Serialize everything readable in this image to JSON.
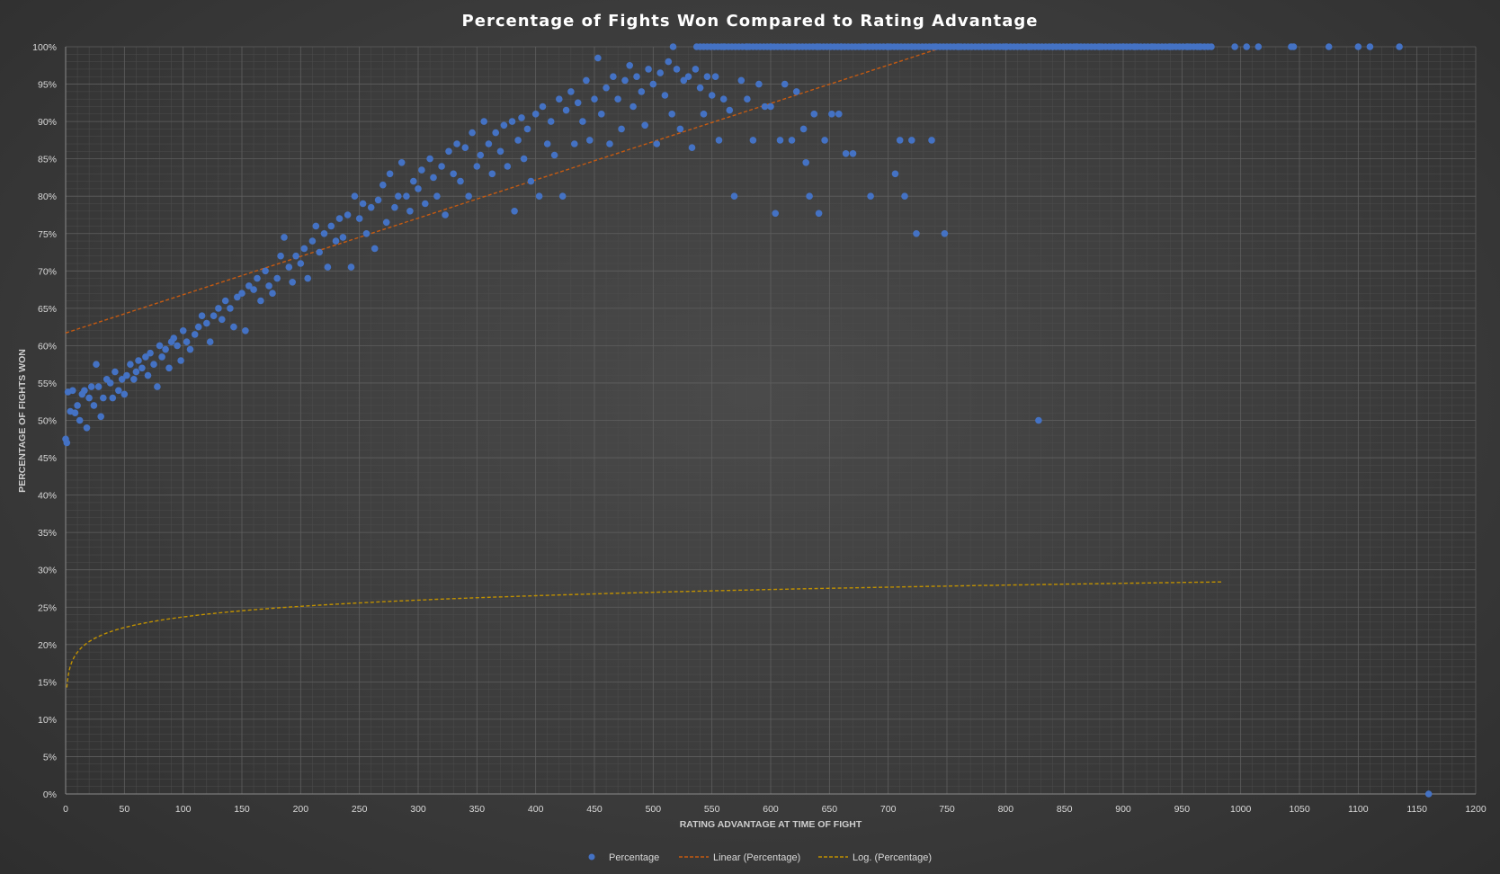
{
  "chart_data": {
    "type": "scatter",
    "title": "Percentage of Fights Won Compared to Rating Advantage",
    "xlabel": "RATING ADVANTAGE AT TIME OF FIGHT",
    "ylabel": "PERCENTAGE OF FIGHTS WON",
    "xlim": [
      0,
      1200
    ],
    "ylim": [
      0,
      1
    ],
    "xticks": [
      "0",
      "50",
      "100",
      "150",
      "200",
      "250",
      "300",
      "350",
      "400",
      "450",
      "500",
      "550",
      "600",
      "650",
      "700",
      "750",
      "800",
      "850",
      "900",
      "950",
      "1000",
      "1050",
      "1100",
      "1150",
      "1200"
    ],
    "yticks": [
      "0%",
      "5%",
      "10%",
      "15%",
      "20%",
      "25%",
      "30%",
      "35%",
      "40%",
      "45%",
      "50%",
      "55%",
      "60%",
      "65%",
      "70%",
      "75%",
      "80%",
      "85%",
      "90%",
      "95%",
      "100%"
    ],
    "grid": true,
    "legend_position": "bottom",
    "colors": {
      "points": "#4472c4",
      "linear": "#c55a11",
      "log": "#bf9000"
    },
    "series": [
      {
        "name": "Percentage",
        "kind": "points",
        "points": [
          [
            0,
            0.475
          ],
          [
            1,
            0.47
          ],
          [
            2,
            0.538
          ],
          [
            4,
            0.512
          ],
          [
            6,
            0.54
          ],
          [
            8,
            0.51
          ],
          [
            10,
            0.52
          ],
          [
            12,
            0.5
          ],
          [
            14,
            0.535
          ],
          [
            16,
            0.54
          ],
          [
            18,
            0.49
          ],
          [
            20,
            0.53
          ],
          [
            22,
            0.545
          ],
          [
            24,
            0.52
          ],
          [
            26,
            0.575
          ],
          [
            28,
            0.545
          ],
          [
            30,
            0.505
          ],
          [
            32,
            0.53
          ],
          [
            35,
            0.555
          ],
          [
            38,
            0.55
          ],
          [
            40,
            0.53
          ],
          [
            42,
            0.565
          ],
          [
            45,
            0.54
          ],
          [
            48,
            0.555
          ],
          [
            50,
            0.535
          ],
          [
            52,
            0.56
          ],
          [
            55,
            0.575
          ],
          [
            58,
            0.555
          ],
          [
            60,
            0.565
          ],
          [
            62,
            0.58
          ],
          [
            65,
            0.57
          ],
          [
            68,
            0.585
          ],
          [
            70,
            0.56
          ],
          [
            72,
            0.59
          ],
          [
            75,
            0.575
          ],
          [
            78,
            0.545
          ],
          [
            80,
            0.6
          ],
          [
            82,
            0.585
          ],
          [
            85,
            0.595
          ],
          [
            88,
            0.57
          ],
          [
            90,
            0.605
          ],
          [
            92,
            0.61
          ],
          [
            95,
            0.6
          ],
          [
            98,
            0.58
          ],
          [
            100,
            0.62
          ],
          [
            103,
            0.605
          ],
          [
            106,
            0.595
          ],
          [
            110,
            0.615
          ],
          [
            113,
            0.625
          ],
          [
            116,
            0.64
          ],
          [
            120,
            0.63
          ],
          [
            123,
            0.605
          ],
          [
            126,
            0.64
          ],
          [
            130,
            0.65
          ],
          [
            133,
            0.635
          ],
          [
            136,
            0.66
          ],
          [
            140,
            0.65
          ],
          [
            143,
            0.625
          ],
          [
            146,
            0.665
          ],
          [
            150,
            0.67
          ],
          [
            153,
            0.62
          ],
          [
            156,
            0.68
          ],
          [
            160,
            0.675
          ],
          [
            163,
            0.69
          ],
          [
            166,
            0.66
          ],
          [
            170,
            0.7
          ],
          [
            173,
            0.68
          ],
          [
            176,
            0.67
          ],
          [
            180,
            0.69
          ],
          [
            183,
            0.72
          ],
          [
            186,
            0.745
          ],
          [
            190,
            0.705
          ],
          [
            193,
            0.685
          ],
          [
            196,
            0.72
          ],
          [
            200,
            0.71
          ],
          [
            203,
            0.73
          ],
          [
            206,
            0.69
          ],
          [
            210,
            0.74
          ],
          [
            213,
            0.76
          ],
          [
            216,
            0.725
          ],
          [
            220,
            0.75
          ],
          [
            223,
            0.705
          ],
          [
            226,
            0.76
          ],
          [
            230,
            0.74
          ],
          [
            233,
            0.77
          ],
          [
            236,
            0.745
          ],
          [
            240,
            0.775
          ],
          [
            243,
            0.705
          ],
          [
            246,
            0.8
          ],
          [
            250,
            0.77
          ],
          [
            253,
            0.79
          ],
          [
            256,
            0.75
          ],
          [
            260,
            0.785
          ],
          [
            263,
            0.73
          ],
          [
            266,
            0.795
          ],
          [
            270,
            0.815
          ],
          [
            273,
            0.765
          ],
          [
            276,
            0.83
          ],
          [
            280,
            0.785
          ],
          [
            283,
            0.8
          ],
          [
            286,
            0.845
          ],
          [
            290,
            0.8
          ],
          [
            293,
            0.78
          ],
          [
            296,
            0.82
          ],
          [
            300,
            0.81
          ],
          [
            303,
            0.835
          ],
          [
            306,
            0.79
          ],
          [
            310,
            0.85
          ],
          [
            313,
            0.825
          ],
          [
            316,
            0.8
          ],
          [
            320,
            0.84
          ],
          [
            323,
            0.775
          ],
          [
            326,
            0.86
          ],
          [
            330,
            0.83
          ],
          [
            333,
            0.87
          ],
          [
            336,
            0.82
          ],
          [
            340,
            0.865
          ],
          [
            343,
            0.8
          ],
          [
            346,
            0.885
          ],
          [
            350,
            0.84
          ],
          [
            353,
            0.855
          ],
          [
            356,
            0.9
          ],
          [
            360,
            0.87
          ],
          [
            363,
            0.83
          ],
          [
            366,
            0.885
          ],
          [
            370,
            0.86
          ],
          [
            373,
            0.895
          ],
          [
            376,
            0.84
          ],
          [
            380,
            0.9
          ],
          [
            382,
            0.78
          ],
          [
            385,
            0.875
          ],
          [
            388,
            0.905
          ],
          [
            390,
            0.85
          ],
          [
            393,
            0.89
          ],
          [
            396,
            0.82
          ],
          [
            400,
            0.91
          ],
          [
            403,
            0.8
          ],
          [
            406,
            0.92
          ],
          [
            410,
            0.87
          ],
          [
            413,
            0.9
          ],
          [
            416,
            0.855
          ],
          [
            420,
            0.93
          ],
          [
            423,
            0.8
          ],
          [
            426,
            0.915
          ],
          [
            430,
            0.94
          ],
          [
            433,
            0.87
          ],
          [
            436,
            0.925
          ],
          [
            440,
            0.9
          ],
          [
            443,
            0.955
          ],
          [
            446,
            0.875
          ],
          [
            450,
            0.93
          ],
          [
            453,
            0.985
          ],
          [
            456,
            0.91
          ],
          [
            460,
            0.945
          ],
          [
            463,
            0.87
          ],
          [
            466,
            0.96
          ],
          [
            470,
            0.93
          ],
          [
            473,
            0.89
          ],
          [
            476,
            0.955
          ],
          [
            480,
            0.975
          ],
          [
            483,
            0.92
          ],
          [
            486,
            0.96
          ],
          [
            490,
            0.94
          ],
          [
            493,
            0.895
          ],
          [
            496,
            0.97
          ],
          [
            500,
            0.95
          ],
          [
            503,
            0.87
          ],
          [
            506,
            0.965
          ],
          [
            510,
            0.935
          ],
          [
            513,
            0.98
          ],
          [
            516,
            0.91
          ],
          [
            520,
            0.97
          ],
          [
            523,
            0.89
          ],
          [
            526,
            0.955
          ],
          [
            530,
            0.96
          ],
          [
            533,
            0.865
          ],
          [
            536,
            0.97
          ],
          [
            540,
            0.945
          ],
          [
            543,
            0.91
          ],
          [
            546,
            0.96
          ],
          [
            550,
            0.935
          ],
          [
            553,
            0.96
          ],
          [
            556,
            0.875
          ],
          [
            560,
            0.93
          ],
          [
            565,
            0.915
          ],
          [
            569,
            0.8
          ],
          [
            575,
            0.955
          ],
          [
            580,
            0.93
          ],
          [
            585,
            0.875
          ],
          [
            590,
            0.95
          ],
          [
            595,
            0.92
          ],
          [
            600,
            0.92
          ],
          [
            604,
            0.777
          ],
          [
            608,
            0.875
          ],
          [
            612,
            0.95
          ],
          [
            618,
            0.875
          ],
          [
            622,
            0.94
          ],
          [
            628,
            0.89
          ],
          [
            630,
            0.845
          ],
          [
            633,
            0.8
          ],
          [
            637,
            0.91
          ],
          [
            641,
            0.777
          ],
          [
            646,
            0.875
          ],
          [
            652,
            0.91
          ],
          [
            658,
            0.91
          ],
          [
            664,
            0.857
          ],
          [
            670,
            0.857
          ],
          [
            685,
            0.8
          ],
          [
            706,
            0.83
          ],
          [
            710,
            0.875
          ],
          [
            714,
            0.8
          ],
          [
            720,
            0.875
          ],
          [
            724,
            0.75
          ],
          [
            737,
            0.875
          ],
          [
            748,
            0.75
          ],
          [
            828,
            0.5
          ],
          [
            517,
            1
          ],
          [
            537,
            1
          ],
          [
            560,
            1
          ],
          [
            580,
            1
          ],
          [
            600,
            1
          ],
          [
            620,
            1
          ],
          [
            640,
            1
          ],
          [
            660,
            1
          ],
          [
            680,
            1
          ],
          [
            700,
            1
          ],
          [
            720,
            1
          ],
          [
            740,
            1
          ],
          [
            760,
            1
          ],
          [
            780,
            1
          ],
          [
            800,
            1
          ],
          [
            820,
            1
          ],
          [
            840,
            1
          ],
          [
            860,
            1
          ],
          [
            880,
            1
          ],
          [
            900,
            1
          ],
          [
            910,
            1
          ],
          [
            925,
            1
          ],
          [
            940,
            1
          ],
          [
            955,
            1
          ],
          [
            965,
            1
          ],
          [
            995,
            1
          ],
          [
            1005,
            1
          ],
          [
            1015,
            1
          ],
          [
            1043,
            1
          ],
          [
            1045,
            1
          ],
          [
            1075,
            1
          ],
          [
            1100,
            1
          ],
          [
            1110,
            1
          ],
          [
            1135,
            1
          ],
          [
            1160,
            0
          ]
        ]
      },
      {
        "name": "Linear (Percentage)",
        "kind": "linear",
        "intercept": 0.617,
        "slope": 0.000512
      },
      {
        "name": "Log. (Percentage)",
        "kind": "log",
        "a": 0.0205,
        "b": 0.1425
      }
    ]
  }
}
